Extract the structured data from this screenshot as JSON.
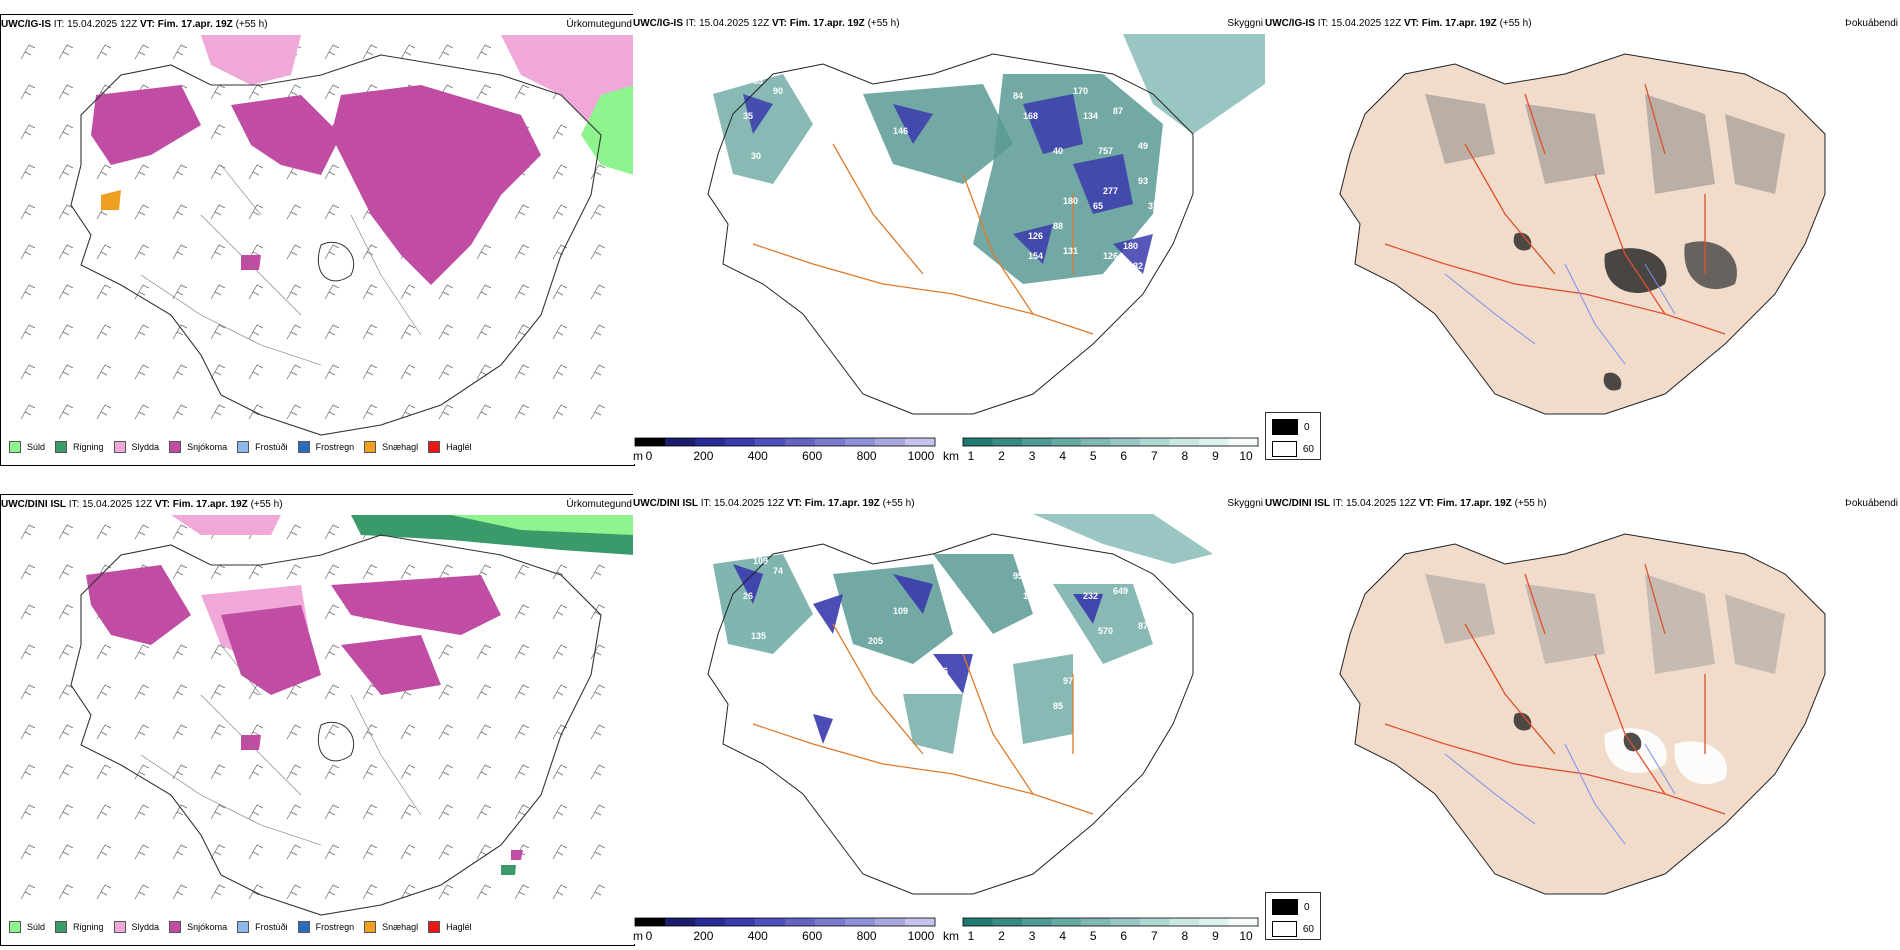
{
  "rows": [
    {
      "model": "UWC/IG-IS",
      "it_label": "IT:",
      "it_value": "15.04.2025 12Z",
      "vt_label": "VT:",
      "vt_value": "Fim. 17.apr. 19Z",
      "lead": "(+55 h)",
      "precip_type_label": "Úrkomutegund",
      "cloud_label": "Skyggni",
      "fog_label": "Þokuábendi",
      "cloud_labels": [
        "83",
        "90",
        "35",
        "30",
        "46",
        "104",
        "80",
        "113",
        "84",
        "168",
        "170",
        "134",
        "87",
        "146",
        "40",
        "757",
        "49",
        "277",
        "93",
        "136",
        "160",
        "65",
        "180",
        "88",
        "193",
        "37",
        "126",
        "154",
        "131",
        "126",
        "180",
        "82",
        "22",
        "254"
      ]
    },
    {
      "model": "UWC/DINI ISL",
      "it_label": "IT:",
      "it_value": "15.04.2025 12Z",
      "vt_label": "VT:",
      "vt_value": "Fim. 17.apr. 19Z",
      "lead": "(+55 h)",
      "precip_type_label": "Úrkomutegund",
      "cloud_label": "Skyggni",
      "fog_label": "Þokuábendi",
      "cloud_labels": [
        "109",
        "74",
        "26",
        "135",
        "205",
        "136",
        "118",
        "45",
        "95",
        "106",
        "496",
        "232",
        "649",
        "109",
        "95",
        "570",
        "87",
        "299",
        "145",
        "26",
        "346",
        "121",
        "97",
        "85",
        "185",
        "15"
      ]
    }
  ],
  "precip_legend": [
    {
      "label": "Súld",
      "color": "#8ef58e"
    },
    {
      "label": "Rigning",
      "color": "#3a9a6a"
    },
    {
      "label": "Slydda",
      "color": "#f0a8d8"
    },
    {
      "label": "Snjókoma",
      "color": "#c04ca4"
    },
    {
      "label": "Frostúði",
      "color": "#8cb8ec"
    },
    {
      "label": "Frostregn",
      "color": "#2a6cc0"
    },
    {
      "label": "Snæhagl",
      "color": "#f0a020"
    },
    {
      "label": "Haglél",
      "color": "#e81818"
    }
  ],
  "cloudbase": {
    "unit_m": "m",
    "ticks_m": [
      "0",
      "200",
      "400",
      "600",
      "800",
      "1000"
    ],
    "unit_km": "km",
    "ticks_km": [
      "1",
      "2",
      "3",
      "4",
      "5",
      "6",
      "7",
      "8",
      "9",
      "10"
    ],
    "colors_m": [
      "#000000",
      "#1c1c6c",
      "#2a2a96",
      "#3a3aae",
      "#5050bc",
      "#6464c4",
      "#7a7ace",
      "#9090d8",
      "#a8a8e0",
      "#c4c4ec"
    ],
    "colors_km": [
      "#1f7a72",
      "#3a8a84",
      "#519a94",
      "#68aaa4",
      "#80b8b4",
      "#98c8c4",
      "#b0d8d4",
      "#c8e6e2",
      "#e0f2f0",
      "#f6fbfb"
    ]
  },
  "fog_legend": [
    {
      "label": "0",
      "color": "#000000"
    },
    {
      "label": "60",
      "color": "#ffffff"
    }
  ]
}
